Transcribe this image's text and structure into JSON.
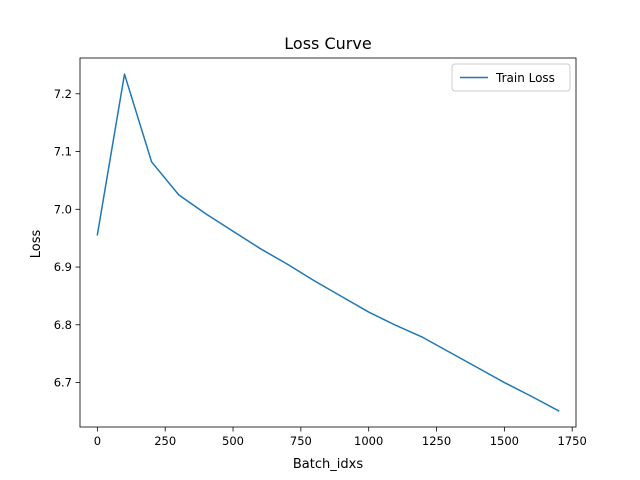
{
  "chart_data": {
    "type": "line",
    "title": "Loss Curve",
    "xlabel": "Batch_idxs",
    "ylabel": "Loss",
    "xlim": [
      -64,
      1764
    ],
    "ylim": [
      6.623,
      7.262
    ],
    "xticks": [
      0,
      250,
      500,
      750,
      1000,
      1250,
      1500,
      1750
    ],
    "yticks": [
      6.7,
      6.8,
      6.9,
      7.0,
      7.1,
      7.2
    ],
    "ytick_labels": [
      "6.7",
      "6.8",
      "6.9",
      "7.0",
      "7.1",
      "7.2"
    ],
    "grid": false,
    "legend_position": "top-right",
    "series": [
      {
        "name": "Train Loss",
        "color": "#1f77b4",
        "x": [
          0,
          100,
          200,
          300,
          400,
          500,
          600,
          700,
          800,
          900,
          1000,
          1100,
          1200,
          1300,
          1400,
          1500,
          1600,
          1700
        ],
        "y": [
          6.956,
          7.234,
          7.082,
          7.025,
          6.992,
          6.962,
          6.932,
          6.905,
          6.876,
          6.849,
          6.822,
          6.799,
          6.778,
          6.752,
          6.726,
          6.7,
          6.676,
          6.651
        ]
      }
    ]
  }
}
